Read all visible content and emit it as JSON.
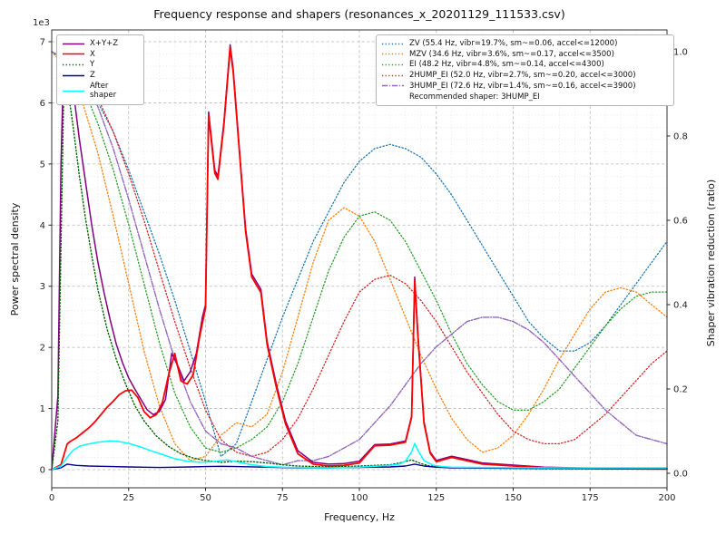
{
  "figure": {
    "title": "Frequency response and shapers (resonances_x_20201129_111533.csv)",
    "xlabel": "Frequency, Hz",
    "ylabel_left": "Power spectral density",
    "ylabel_right": "Shaper vibration reduction (ratio)"
  },
  "legend_psd": {
    "items": [
      {
        "label": "X+Y+Z",
        "color": "#800080",
        "dash": "solid"
      },
      {
        "label": "X",
        "color": "#ff0000",
        "dash": "solid"
      },
      {
        "label": "Y",
        "color": "#006400",
        "dash": "dotted"
      },
      {
        "label": "Z",
        "color": "#00008b",
        "dash": "solid"
      },
      {
        "label": "After shaper",
        "color": "#00ffff",
        "dash": "solid"
      }
    ]
  },
  "legend_shapers": {
    "items": [
      {
        "label": "ZV (55.4 Hz, vibr=19.7%, sm~=0.06, accel<=12000)",
        "color": "#1f77b4",
        "dash": "dotted"
      },
      {
        "label": "MZV (34.6 Hz, vibr=3.6%, sm~=0.17, accel<=3500)",
        "color": "#ff7f0e",
        "dash": "dotted"
      },
      {
        "label": "EI (48.2 Hz, vibr=4.8%, sm~=0.14, accel<=4300)",
        "color": "#2ca02c",
        "dash": "dotted"
      },
      {
        "label": "2HUMP_EI (52.0 Hz, vibr=2.7%, sm~=0.20, accel<=3000)",
        "color": "#d62728",
        "dash": "dotted"
      },
      {
        "label": "3HUMP_EI (72.6 Hz, vibr=1.4%, sm~=0.16, accel<=3900)",
        "color": "#9467bd",
        "dash": "dashdot"
      }
    ],
    "note": "Recommended shaper: 3HUMP_EI"
  },
  "chart_data": {
    "type": "line",
    "title": "Frequency response and shapers (resonances_x_20201129_111533.csv)",
    "xlabel": "Frequency, Hz",
    "xlim": [
      0,
      200
    ],
    "x_ticks": [
      0,
      25,
      50,
      75,
      100,
      125,
      150,
      175,
      200
    ],
    "left_axis": {
      "label": "Power spectral density",
      "range": [
        0,
        7000
      ],
      "ticks": [
        0,
        1000,
        2000,
        3000,
        4000,
        5000,
        6000,
        7000
      ],
      "tick_labels": [
        "0",
        "1",
        "2",
        "3",
        "4",
        "5",
        "6",
        "7"
      ],
      "multiplier": "1e3"
    },
    "right_axis": {
      "label": "Shaper vibration reduction (ratio)",
      "range": [
        0,
        1
      ],
      "ticks": [
        0,
        0.2,
        0.4,
        0.6,
        0.8,
        1.0
      ],
      "tick_labels": [
        "0.0",
        "0.2",
        "0.4",
        "0.6",
        "0.8",
        "1.0"
      ]
    },
    "grid": {
      "major": true,
      "minor": true
    },
    "legend_positions": {
      "psd": "upper left",
      "shapers": "upper right"
    },
    "series": [
      {
        "name": "ZV",
        "axis": "right",
        "color": "#1f77b4",
        "dash": "dotted",
        "width": 1.3,
        "x": [
          0,
          5,
          10,
          15,
          20,
          25,
          30,
          35,
          40,
          45,
          50,
          55,
          60,
          65,
          70,
          75,
          80,
          85,
          90,
          95,
          100,
          105,
          110,
          115,
          120,
          125,
          130,
          135,
          140,
          145,
          150,
          155,
          160,
          165,
          170,
          175,
          180,
          185,
          190,
          195,
          200
        ],
        "y": [
          1.0,
          0.98,
          0.94,
          0.88,
          0.81,
          0.72,
          0.62,
          0.52,
          0.41,
          0.29,
          0.17,
          0.04,
          0.07,
          0.17,
          0.27,
          0.37,
          0.46,
          0.55,
          0.62,
          0.69,
          0.74,
          0.77,
          0.78,
          0.77,
          0.75,
          0.71,
          0.66,
          0.6,
          0.54,
          0.48,
          0.42,
          0.36,
          0.32,
          0.29,
          0.29,
          0.31,
          0.35,
          0.4,
          0.45,
          0.5,
          0.55
        ]
      },
      {
        "name": "MZV",
        "axis": "right",
        "color": "#ff7f0e",
        "dash": "dotted",
        "width": 1.3,
        "x": [
          0,
          5,
          10,
          15,
          20,
          25,
          30,
          35,
          40,
          45,
          50,
          55,
          60,
          65,
          70,
          75,
          80,
          85,
          90,
          95,
          100,
          105,
          110,
          115,
          120,
          125,
          130,
          135,
          140,
          145,
          150,
          155,
          160,
          165,
          170,
          175,
          180,
          185,
          190,
          195,
          200
        ],
        "y": [
          1.0,
          0.96,
          0.88,
          0.76,
          0.61,
          0.45,
          0.29,
          0.16,
          0.07,
          0.03,
          0.04,
          0.09,
          0.12,
          0.11,
          0.14,
          0.24,
          0.37,
          0.5,
          0.6,
          0.63,
          0.61,
          0.55,
          0.46,
          0.37,
          0.28,
          0.2,
          0.13,
          0.08,
          0.05,
          0.06,
          0.09,
          0.14,
          0.2,
          0.27,
          0.33,
          0.39,
          0.43,
          0.44,
          0.43,
          0.4,
          0.37
        ]
      },
      {
        "name": "EI",
        "axis": "right",
        "color": "#2ca02c",
        "dash": "dotted",
        "width": 1.3,
        "x": [
          0,
          5,
          10,
          15,
          20,
          25,
          30,
          35,
          40,
          45,
          50,
          55,
          60,
          65,
          70,
          75,
          80,
          85,
          90,
          95,
          100,
          105,
          110,
          115,
          120,
          125,
          130,
          135,
          140,
          145,
          150,
          155,
          160,
          165,
          170,
          175,
          180,
          185,
          190,
          195,
          200
        ],
        "y": [
          1.0,
          0.97,
          0.92,
          0.83,
          0.72,
          0.59,
          0.45,
          0.31,
          0.19,
          0.11,
          0.06,
          0.05,
          0.06,
          0.08,
          0.11,
          0.17,
          0.26,
          0.37,
          0.48,
          0.56,
          0.61,
          0.62,
          0.6,
          0.55,
          0.48,
          0.41,
          0.33,
          0.26,
          0.21,
          0.17,
          0.15,
          0.15,
          0.17,
          0.2,
          0.25,
          0.3,
          0.35,
          0.39,
          0.42,
          0.43,
          0.43
        ]
      },
      {
        "name": "2HUMP_EI",
        "axis": "right",
        "color": "#d62728",
        "dash": "dotted",
        "width": 1.3,
        "x": [
          0,
          5,
          10,
          15,
          20,
          25,
          30,
          35,
          40,
          45,
          50,
          55,
          60,
          65,
          70,
          75,
          80,
          85,
          90,
          95,
          100,
          105,
          110,
          115,
          120,
          125,
          130,
          135,
          140,
          145,
          150,
          155,
          160,
          165,
          170,
          175,
          180,
          185,
          190,
          195,
          200
        ],
        "y": [
          1.0,
          0.98,
          0.95,
          0.89,
          0.81,
          0.71,
          0.6,
          0.48,
          0.36,
          0.25,
          0.15,
          0.08,
          0.05,
          0.04,
          0.05,
          0.08,
          0.13,
          0.2,
          0.28,
          0.36,
          0.43,
          0.46,
          0.47,
          0.45,
          0.41,
          0.36,
          0.3,
          0.24,
          0.19,
          0.14,
          0.1,
          0.08,
          0.07,
          0.07,
          0.08,
          0.11,
          0.14,
          0.18,
          0.22,
          0.26,
          0.29
        ]
      },
      {
        "name": "3HUMP_EI",
        "axis": "right",
        "color": "#9467bd",
        "dash": "dashdot",
        "width": 1.4,
        "x": [
          0,
          5,
          10,
          15,
          20,
          25,
          30,
          35,
          40,
          45,
          50,
          55,
          60,
          65,
          70,
          75,
          80,
          85,
          90,
          95,
          100,
          105,
          110,
          115,
          120,
          125,
          130,
          135,
          140,
          145,
          150,
          155,
          160,
          165,
          170,
          175,
          180,
          185,
          190,
          195,
          200
        ],
        "y": [
          1.0,
          0.98,
          0.94,
          0.87,
          0.77,
          0.65,
          0.52,
          0.39,
          0.27,
          0.17,
          0.1,
          0.07,
          0.06,
          0.04,
          0.03,
          0.02,
          0.03,
          0.03,
          0.04,
          0.06,
          0.08,
          0.12,
          0.16,
          0.21,
          0.26,
          0.3,
          0.33,
          0.36,
          0.37,
          0.37,
          0.36,
          0.34,
          0.31,
          0.27,
          0.23,
          0.19,
          0.15,
          0.12,
          0.09,
          0.08,
          0.07
        ]
      },
      {
        "name": "X+Y+Z",
        "axis": "left",
        "color": "#800080",
        "dash": "solid",
        "width": 1.5,
        "x": [
          0,
          2,
          3,
          4,
          5,
          7,
          9,
          11,
          13,
          15,
          17,
          19,
          21,
          23,
          25,
          27,
          29,
          31,
          33,
          35,
          37,
          39,
          41,
          43,
          45,
          47,
          49,
          50,
          51,
          53,
          54,
          56,
          58,
          59,
          61,
          63,
          65,
          68,
          70,
          73,
          76,
          80,
          85,
          90,
          95,
          100,
          105,
          110,
          113,
          115,
          117,
          118,
          119,
          121,
          123,
          125,
          130,
          140,
          160,
          180,
          200
        ],
        "y": [
          0,
          1200,
          5000,
          6950,
          6800,
          6200,
          5400,
          4700,
          4000,
          3400,
          2900,
          2450,
          2050,
          1750,
          1500,
          1320,
          1150,
          980,
          900,
          950,
          1150,
          1900,
          1700,
          1450,
          1600,
          1900,
          2500,
          2700,
          5850,
          4900,
          4800,
          5700,
          6950,
          6550,
          5250,
          3950,
          3200,
          2950,
          2100,
          1400,
          800,
          310,
          120,
          90,
          100,
          140,
          410,
          420,
          450,
          470,
          880,
          3150,
          2250,
          790,
          290,
          150,
          220,
          110,
          40,
          20,
          15
        ]
      },
      {
        "name": "X",
        "axis": "left",
        "color": "#ff0000",
        "dash": "solid",
        "width": 1.8,
        "x": [
          0,
          3,
          5,
          6,
          8,
          10,
          12,
          14,
          16,
          18,
          20,
          22,
          24,
          26,
          28,
          30,
          32,
          34,
          36,
          38,
          40,
          42,
          44,
          46,
          48,
          50,
          51,
          53,
          54,
          56,
          58,
          59,
          61,
          63,
          65,
          68,
          70,
          73,
          76,
          80,
          85,
          90,
          95,
          100,
          105,
          110,
          113,
          115,
          117,
          118,
          119,
          121,
          123,
          125,
          130,
          140,
          160,
          180,
          200
        ],
        "y": [
          0,
          80,
          420,
          460,
          520,
          600,
          680,
          780,
          900,
          1020,
          1120,
          1230,
          1290,
          1300,
          1180,
          950,
          850,
          900,
          1100,
          1550,
          1900,
          1450,
          1400,
          1550,
          2150,
          2650,
          5800,
          4850,
          4750,
          5650,
          6900,
          6500,
          5200,
          3900,
          3150,
          2900,
          2050,
          1350,
          750,
          260,
          90,
          60,
          70,
          110,
          390,
          400,
          430,
          450,
          860,
          3100,
          2200,
          760,
          270,
          130,
          200,
          90,
          30,
          15,
          10
        ]
      },
      {
        "name": "Y",
        "axis": "left",
        "color": "#006400",
        "dash": "dotted",
        "width": 1.4,
        "x": [
          0,
          2,
          4,
          5,
          7,
          9,
          11,
          13,
          15,
          18,
          21,
          24,
          27,
          30,
          34,
          38,
          42,
          46,
          50,
          55,
          60,
          65,
          70,
          75,
          80,
          90,
          100,
          110,
          114,
          117,
          118,
          120,
          123,
          126,
          130,
          140,
          160,
          180,
          200
        ],
        "y": [
          0,
          800,
          6500,
          6300,
          5600,
          4800,
          4100,
          3500,
          2950,
          2300,
          1800,
          1400,
          1050,
          800,
          550,
          380,
          260,
          190,
          150,
          120,
          140,
          130,
          110,
          80,
          60,
          45,
          60,
          80,
          120,
          160,
          140,
          100,
          60,
          45,
          35,
          25,
          15,
          10,
          10
        ]
      },
      {
        "name": "Z",
        "axis": "left",
        "color": "#00008b",
        "dash": "solid",
        "width": 1.4,
        "x": [
          0,
          3,
          5,
          8,
          12,
          16,
          20,
          25,
          30,
          35,
          40,
          45,
          50,
          55,
          60,
          70,
          80,
          90,
          100,
          110,
          115,
          118,
          121,
          125,
          130,
          140,
          160,
          180,
          200
        ],
        "y": [
          0,
          30,
          90,
          70,
          60,
          55,
          50,
          45,
          40,
          35,
          40,
          45,
          50,
          55,
          50,
          40,
          30,
          30,
          35,
          45,
          60,
          90,
          60,
          40,
          30,
          25,
          20,
          20,
          20
        ]
      },
      {
        "name": "After shaper",
        "axis": "left",
        "color": "#00ffff",
        "dash": "solid",
        "width": 1.5,
        "x": [
          0,
          3,
          5,
          7,
          9,
          11,
          13,
          15,
          17,
          19,
          21,
          23,
          25,
          27,
          29,
          31,
          34,
          37,
          40,
          44,
          48,
          52,
          55,
          57,
          59,
          62,
          65,
          70,
          75,
          80,
          90,
          100,
          105,
          110,
          113,
          115,
          117,
          118,
          119,
          121,
          124,
          127,
          130,
          140,
          160,
          180,
          200
        ],
        "y": [
          0,
          60,
          200,
          320,
          380,
          410,
          430,
          450,
          460,
          470,
          465,
          450,
          430,
          400,
          370,
          330,
          280,
          230,
          180,
          140,
          120,
          130,
          150,
          160,
          140,
          110,
          80,
          50,
          40,
          35,
          30,
          40,
          55,
          70,
          90,
          140,
          290,
          430,
          320,
          150,
          70,
          50,
          40,
          35,
          30,
          30,
          30
        ]
      }
    ]
  }
}
